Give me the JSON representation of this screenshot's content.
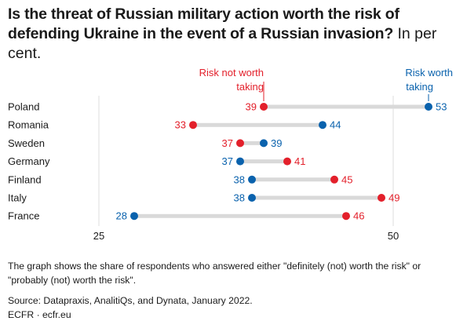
{
  "title": {
    "bold": "Is the threat of Russian military action worth the risk of defending Ukraine in the event of a Russian invasion?",
    "unit": "In per cent."
  },
  "chart_data": {
    "type": "dumbbell",
    "categories": [
      "Poland",
      "Romania",
      "Sweden",
      "Germany",
      "Finland",
      "Italy",
      "France"
    ],
    "series": [
      {
        "name": "Risk not worth taking",
        "color": "#e3202b",
        "values": [
          39,
          33,
          37,
          41,
          45,
          49,
          46
        ]
      },
      {
        "name": "Risk worth taking",
        "color": "#0a62ad",
        "values": [
          53,
          44,
          39,
          37,
          38,
          38,
          28
        ]
      }
    ],
    "xticks": [
      25,
      50
    ],
    "xlim": [
      25,
      55
    ],
    "legend": {
      "not_worth_line1": "Risk not worth",
      "not_worth_line2": "taking",
      "worth_line1": "Risk worth",
      "worth_line2": "taking"
    },
    "grid": true,
    "colors": {
      "connector": "#d9d9d9",
      "grid": "#dddddd"
    }
  },
  "footer": {
    "note": "The graph shows the share of respondents who answered either \"definitely (not) worth the risk\" or \"probably (not) worth the risk\".",
    "source": "Source: Datapraxis, AnalitiQs, and Dynata, January 2022.",
    "brand": "ECFR · ecfr.eu"
  }
}
